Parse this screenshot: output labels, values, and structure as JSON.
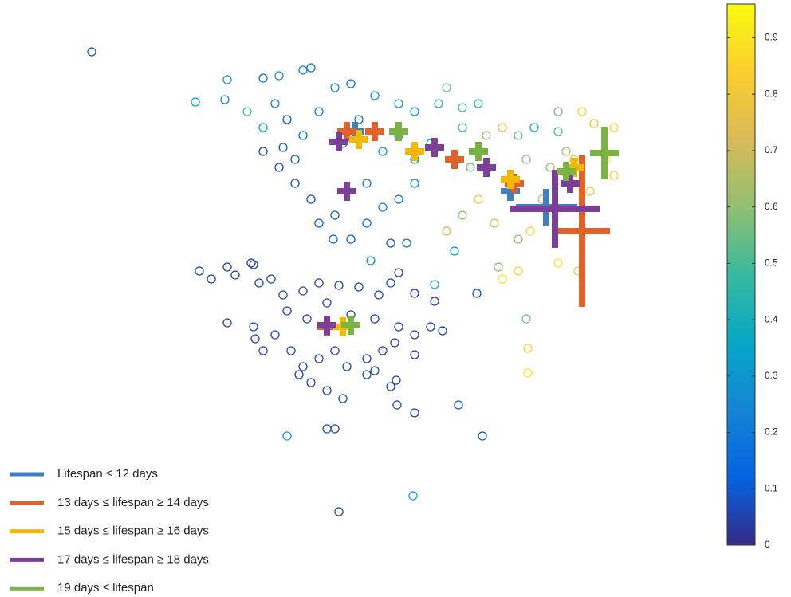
{
  "chart_data": {
    "type": "scatter",
    "xlim": [
      0,
      80
    ],
    "ylim": [
      0,
      75
    ],
    "points": {
      "x": [
        24.5,
        28.5,
        28.2,
        33,
        35,
        38,
        39,
        31,
        33,
        34.5,
        36,
        38,
        40,
        33,
        35,
        37,
        39,
        42,
        44,
        46,
        48,
        50,
        52,
        46,
        42,
        44,
        47,
        50,
        52,
        55,
        56,
        58,
        60,
        58,
        61,
        63,
        65,
        67,
        70,
        73,
        74.5,
        77,
        76,
        77,
        74,
        70,
        69,
        66,
        64,
        60,
        58,
        56,
        62,
        65,
        66.5,
        70,
        72.5,
        63,
        62.5,
        65,
        57,
        51,
        49,
        46.5,
        41.8,
        40,
        52,
        54,
        45,
        43,
        48,
        50,
        37,
        35.5,
        66,
        66.2,
        66.2,
        54.5,
        59.8,
        59,
        71,
        68,
        72,
        25,
        26.5,
        28.5,
        29.5,
        31.5,
        31.8,
        32.5,
        34,
        35.5,
        38,
        40,
        42.5,
        45,
        47.5,
        49,
        50,
        52,
        54.5,
        28.5,
        31.8,
        34.5,
        36,
        38.5,
        41,
        44,
        47,
        50,
        52,
        54,
        55.5,
        32,
        33,
        36.5,
        38,
        40,
        42,
        43.5,
        46,
        48,
        49.5,
        52,
        37.5,
        39,
        41,
        43,
        46,
        49,
        49.8,
        52,
        57.5,
        41,
        42,
        60.5,
        49.7,
        47,
        11.5,
        36,
        51.8,
        42.5
      ],
      "y": [
        62.2,
        65,
        62.5,
        65.2,
        65.5,
        66.2,
        66.5,
        61,
        59,
        62,
        60,
        58,
        61,
        56,
        54,
        52,
        50,
        48,
        45,
        47,
        49,
        50,
        52,
        52,
        64,
        64.5,
        63,
        62,
        61,
        62,
        64,
        61.5,
        62,
        59,
        58,
        59,
        58,
        59,
        58.5,
        61,
        59.5,
        59,
        55,
        53,
        51,
        61,
        54,
        55,
        52,
        50,
        48,
        46,
        47,
        45,
        46,
        42,
        41,
        40,
        41.5,
        41,
        43.5,
        44.5,
        44.5,
        42.3,
        45,
        47,
        55,
        57,
        60,
        57,
        56,
        58,
        55,
        56.5,
        35,
        31.3,
        28.2,
        39.3,
        38.2,
        54,
        56,
        50,
        55,
        41,
        40,
        41.5,
        40.5,
        42,
        41.8,
        39.5,
        40,
        38,
        38.5,
        39.5,
        39.2,
        39,
        38,
        39.5,
        40.8,
        38.2,
        37.2,
        34.5,
        34,
        33,
        36,
        35,
        37,
        35.5,
        35,
        34,
        33,
        34,
        33.5,
        32.5,
        31,
        31,
        29,
        30,
        31,
        29,
        30,
        31,
        32,
        30.5,
        28,
        27,
        26,
        25,
        28,
        26.5,
        24.2,
        23.2,
        24.2,
        21.2,
        21.2,
        20.3,
        27.3,
        28.5,
        68.5,
        20.3,
        12.8,
        10.8
      ],
      "c": [
        0.35,
        0.3,
        0.25,
        0.15,
        0.3,
        0.2,
        0.15,
        0.5,
        0.35,
        0.2,
        0.1,
        0.15,
        0.2,
        0.05,
        0.05,
        0.08,
        0.08,
        0.1,
        0.1,
        0.15,
        0.2,
        0.2,
        0.25,
        0.2,
        0.25,
        0.2,
        0.3,
        0.3,
        0.35,
        0.45,
        0.55,
        0.5,
        0.45,
        0.5,
        0.6,
        0.75,
        0.55,
        0.4,
        0.5,
        0.85,
        0.8,
        0.85,
        0.9,
        0.85,
        0.8,
        0.55,
        0.6,
        0.6,
        0.7,
        0.8,
        0.6,
        0.7,
        0.75,
        0.6,
        0.85,
        0.9,
        0.8,
        0.9,
        0.6,
        0.85,
        0.35,
        0.2,
        0.1,
        0.3,
        0.15,
        0.1,
        0.25,
        0.35,
        0.15,
        0.25,
        0.3,
        0.25,
        0.1,
        0.1,
        0.55,
        0.85,
        0.9,
        0.4,
        0.1,
        0.55,
        0.65,
        0.7,
        0.75,
        0.05,
        0.05,
        0.05,
        0.05,
        0.03,
        0.05,
        0.05,
        0.05,
        0.05,
        0.05,
        0.05,
        0.05,
        0.05,
        0.05,
        0.05,
        0.05,
        0.05,
        0.05,
        0.05,
        0.05,
        0.05,
        0.05,
        0.05,
        0.05,
        0.05,
        0.05,
        0.05,
        0.05,
        0.05,
        0.05,
        0.05,
        0.05,
        0.05,
        0.05,
        0.05,
        0.05,
        0.05,
        0.05,
        0.05,
        0.05,
        0.05,
        0.05,
        0.05,
        0.05,
        0.05,
        0.05,
        0.05,
        0.05,
        0.05,
        0.1,
        0.05,
        0.05,
        0.1,
        0.05,
        0.05,
        0.1,
        0.3,
        0.35,
        0.05
      ]
    },
    "series": [
      {
        "name": "Lifespan ≤ 12 days",
        "color": "#3f7fc0",
        "x": [
          41,
          44.5,
          64,
          68.5
        ],
        "y": [
          34,
          58.5,
          51,
          49
        ],
        "xerr": [
          1.2,
          1.2,
          1.2,
          3.8
        ],
        "yerr": [
          1.2,
          1.2,
          1.2,
          2.3
        ]
      },
      {
        "name": "13 days ≤ lifespan ≥ 14 days",
        "color": "#e0622a",
        "x": [
          41,
          43.5,
          47,
          57,
          64.5,
          73
        ],
        "y": [
          34,
          58.5,
          58.5,
          55,
          52,
          46
        ],
        "xerr": [
          1.2,
          1.2,
          1.2,
          1.2,
          1.2,
          3.5
        ],
        "yerr": [
          1.2,
          1.2,
          1.2,
          1.2,
          1.2,
          9.5
        ]
      },
      {
        "name": "15 days ≤ lifespan ≥ 16 days",
        "color": "#f5b800",
        "x": [
          43,
          45,
          52,
          64,
          72
        ],
        "y": [
          34,
          57.5,
          56,
          52.5,
          54
        ],
        "xerr": [
          1.2,
          1.2,
          1.2,
          1.2,
          1.2
        ],
        "yerr": [
          1.2,
          1.2,
          1.2,
          1.2,
          1.2
        ]
      },
      {
        "name": "17 days ≤ lifespan ≥ 18 days",
        "color": "#7b3f98",
        "x": [
          41,
          42.5,
          43.5,
          54.5,
          61,
          69.6,
          71.5
        ],
        "y": [
          34.2,
          57.2,
          51,
          56.5,
          54,
          48.8,
          52
        ],
        "xerr": [
          1.2,
          1.2,
          1.2,
          1.2,
          1.2,
          5.6,
          1.2
        ],
        "yerr": [
          1.2,
          1.2,
          1.2,
          1.2,
          1.2,
          4.9,
          1.2
        ]
      },
      {
        "name": "19 days ≤ lifespan",
        "color": "#7bb342",
        "x": [
          44,
          50,
          60,
          71,
          75.8
        ],
        "y": [
          34.2,
          58.5,
          56,
          53.5,
          55.8
        ],
        "xerr": [
          1.2,
          1.2,
          1.2,
          1.2,
          1.8
        ],
        "yerr": [
          1.2,
          1.2,
          1.2,
          1.2,
          3.3
        ]
      }
    ],
    "colorbar": {
      "lim": [
        0,
        0.96
      ],
      "ticks": [
        0,
        0.1,
        0.2,
        0.3,
        0.4,
        0.5,
        0.6,
        0.7,
        0.8,
        0.9
      ]
    }
  }
}
